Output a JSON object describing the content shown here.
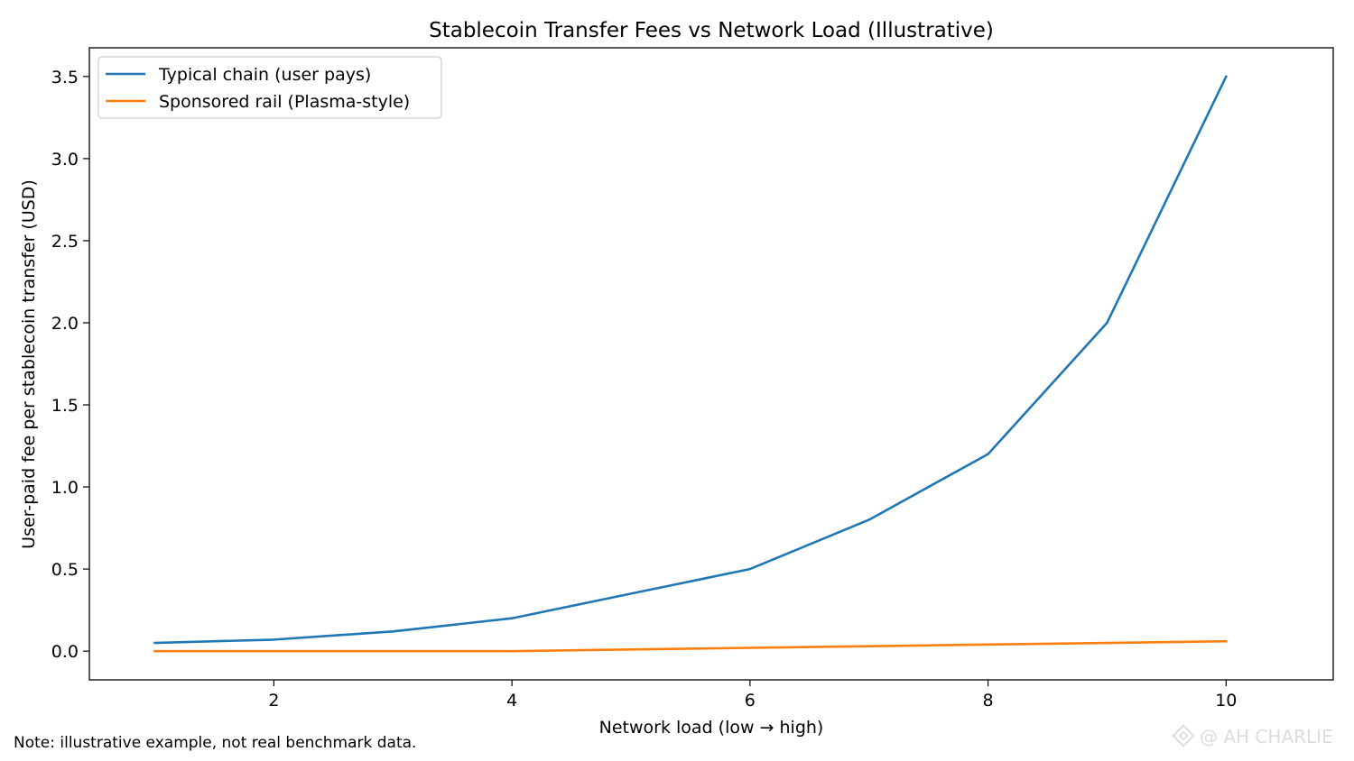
{
  "chart_data": {
    "type": "line",
    "title": "Stablecoin Transfer Fees vs Network Load (Illustrative)",
    "xlabel": "Network load (low → high)",
    "ylabel": "User-paid fee per stablecoin transfer (USD)",
    "xlim": [
      0.45,
      10.9
    ],
    "ylim": [
      -0.175,
      3.675
    ],
    "xticks": [
      2,
      4,
      6,
      8,
      10
    ],
    "xtick_labels": [
      "2",
      "4",
      "6",
      "8",
      "10"
    ],
    "yticks": [
      0.0,
      0.5,
      1.0,
      1.5,
      2.0,
      2.5,
      3.0,
      3.5
    ],
    "ytick_labels": [
      "0.0",
      "0.5",
      "1.0",
      "1.5",
      "2.0",
      "2.5",
      "3.0",
      "3.5"
    ],
    "grid": false,
    "legend_position": "upper-left",
    "x": [
      1,
      2,
      3,
      4,
      5,
      6,
      7,
      8,
      9,
      10
    ],
    "series": [
      {
        "name": "Typical chain (user pays)",
        "color": "#1f77b4",
        "values": [
          0.05,
          0.07,
          0.12,
          0.2,
          0.35,
          0.5,
          0.8,
          1.2,
          2.0,
          3.5
        ]
      },
      {
        "name": "Sponsored rail (Plasma-style)",
        "color": "#ff7f0e",
        "values": [
          0.0,
          0.0,
          0.0,
          0.0,
          0.01,
          0.02,
          0.03,
          0.04,
          0.05,
          0.06
        ]
      }
    ]
  },
  "footnote": "Note: illustrative example, not real benchmark data.",
  "watermark": "@ AH CHARLIE",
  "watermark_icon": "binance-logo-icon"
}
